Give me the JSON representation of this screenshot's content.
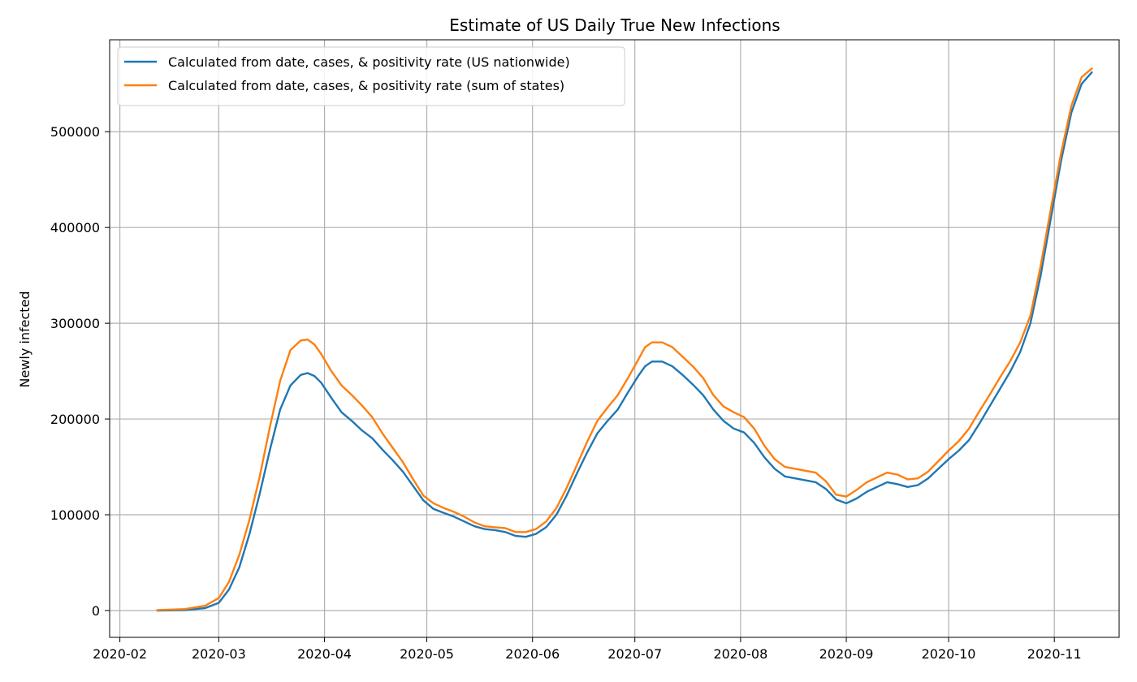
{
  "chart_data": {
    "type": "line",
    "title": "Estimate of US Daily True New Infections",
    "xlabel": "",
    "ylabel": "Newly infected",
    "x_ticks": [
      "2020-02",
      "2020-03",
      "2020-04",
      "2020-05",
      "2020-06",
      "2020-07",
      "2020-08",
      "2020-09",
      "2020-10",
      "2020-11"
    ],
    "y_ticks": [
      "0",
      "100000",
      "200000",
      "300000",
      "400000",
      "500000"
    ],
    "xlim": [
      "2020-01-29",
      "2020-11-20"
    ],
    "ylim": [
      -28000,
      596000
    ],
    "grid": true,
    "legend_position": "upper-left",
    "series": [
      {
        "name": "Calculated from date, cases, & positivity rate (US nationwide)",
        "color": "#1f77b4",
        "points": [
          [
            "2020-02-12",
            0
          ],
          [
            "2020-02-20",
            500
          ],
          [
            "2020-02-26",
            2500
          ],
          [
            "2020-03-01",
            8000
          ],
          [
            "2020-03-04",
            22000
          ],
          [
            "2020-03-07",
            45000
          ],
          [
            "2020-03-10",
            80000
          ],
          [
            "2020-03-13",
            122000
          ],
          [
            "2020-03-16",
            168000
          ],
          [
            "2020-03-19",
            210000
          ],
          [
            "2020-03-22",
            235000
          ],
          [
            "2020-03-25",
            246000
          ],
          [
            "2020-03-27",
            248000
          ],
          [
            "2020-03-29",
            245000
          ],
          [
            "2020-03-31",
            238000
          ],
          [
            "2020-04-03",
            222000
          ],
          [
            "2020-04-06",
            207000
          ],
          [
            "2020-04-09",
            198000
          ],
          [
            "2020-04-12",
            188000
          ],
          [
            "2020-04-15",
            180000
          ],
          [
            "2020-04-18",
            168000
          ],
          [
            "2020-04-21",
            157000
          ],
          [
            "2020-04-24",
            145000
          ],
          [
            "2020-04-27",
            130000
          ],
          [
            "2020-04-30",
            115000
          ],
          [
            "2020-05-03",
            106000
          ],
          [
            "2020-05-06",
            102000
          ],
          [
            "2020-05-09",
            98000
          ],
          [
            "2020-05-12",
            93000
          ],
          [
            "2020-05-15",
            88000
          ],
          [
            "2020-05-18",
            85000
          ],
          [
            "2020-05-21",
            84000
          ],
          [
            "2020-05-24",
            82000
          ],
          [
            "2020-05-27",
            78000
          ],
          [
            "2020-05-30",
            77000
          ],
          [
            "2020-06-02",
            80000
          ],
          [
            "2020-06-05",
            87000
          ],
          [
            "2020-06-08",
            100000
          ],
          [
            "2020-06-11",
            120000
          ],
          [
            "2020-06-14",
            143000
          ],
          [
            "2020-06-17",
            165000
          ],
          [
            "2020-06-20",
            185000
          ],
          [
            "2020-06-23",
            198000
          ],
          [
            "2020-06-26",
            210000
          ],
          [
            "2020-06-29",
            228000
          ],
          [
            "2020-07-02",
            245000
          ],
          [
            "2020-07-04",
            255000
          ],
          [
            "2020-07-06",
            260000
          ],
          [
            "2020-07-09",
            260000
          ],
          [
            "2020-07-12",
            255000
          ],
          [
            "2020-07-15",
            246000
          ],
          [
            "2020-07-18",
            236000
          ],
          [
            "2020-07-21",
            225000
          ],
          [
            "2020-07-24",
            210000
          ],
          [
            "2020-07-27",
            198000
          ],
          [
            "2020-07-30",
            190000
          ],
          [
            "2020-08-02",
            186000
          ],
          [
            "2020-08-05",
            175000
          ],
          [
            "2020-08-08",
            160000
          ],
          [
            "2020-08-11",
            148000
          ],
          [
            "2020-08-14",
            140000
          ],
          [
            "2020-08-17",
            138000
          ],
          [
            "2020-08-20",
            136000
          ],
          [
            "2020-08-23",
            134000
          ],
          [
            "2020-08-26",
            127000
          ],
          [
            "2020-08-29",
            116000
          ],
          [
            "2020-09-01",
            112000
          ],
          [
            "2020-09-04",
            117000
          ],
          [
            "2020-09-07",
            124000
          ],
          [
            "2020-09-10",
            129000
          ],
          [
            "2020-09-13",
            134000
          ],
          [
            "2020-09-16",
            132000
          ],
          [
            "2020-09-19",
            129000
          ],
          [
            "2020-09-22",
            131000
          ],
          [
            "2020-09-25",
            138000
          ],
          [
            "2020-09-28",
            148000
          ],
          [
            "2020-10-01",
            158000
          ],
          [
            "2020-10-04",
            167000
          ],
          [
            "2020-10-07",
            178000
          ],
          [
            "2020-10-10",
            195000
          ],
          [
            "2020-10-13",
            213000
          ],
          [
            "2020-10-16",
            231000
          ],
          [
            "2020-10-19",
            249000
          ],
          [
            "2020-10-22",
            270000
          ],
          [
            "2020-10-25",
            300000
          ],
          [
            "2020-10-28",
            350000
          ],
          [
            "2020-10-31",
            410000
          ],
          [
            "2020-11-03",
            470000
          ],
          [
            "2020-11-06",
            520000
          ],
          [
            "2020-11-09",
            550000
          ],
          [
            "2020-11-12",
            562000
          ]
        ]
      },
      {
        "name": "Calculated from date, cases, & positivity rate (sum of states)",
        "color": "#ff7f0e",
        "points": [
          [
            "2020-02-12",
            500
          ],
          [
            "2020-02-20",
            1500
          ],
          [
            "2020-02-26",
            5000
          ],
          [
            "2020-03-01",
            13000
          ],
          [
            "2020-03-04",
            30000
          ],
          [
            "2020-03-07",
            58000
          ],
          [
            "2020-03-10",
            95000
          ],
          [
            "2020-03-13",
            140000
          ],
          [
            "2020-03-16",
            192000
          ],
          [
            "2020-03-19",
            240000
          ],
          [
            "2020-03-22",
            272000
          ],
          [
            "2020-03-25",
            282000
          ],
          [
            "2020-03-27",
            283000
          ],
          [
            "2020-03-29",
            278000
          ],
          [
            "2020-03-31",
            268000
          ],
          [
            "2020-04-03",
            250000
          ],
          [
            "2020-04-06",
            235000
          ],
          [
            "2020-04-09",
            225000
          ],
          [
            "2020-04-12",
            214000
          ],
          [
            "2020-04-15",
            202000
          ],
          [
            "2020-04-18",
            185000
          ],
          [
            "2020-04-21",
            170000
          ],
          [
            "2020-04-24",
            155000
          ],
          [
            "2020-04-27",
            137000
          ],
          [
            "2020-04-30",
            120000
          ],
          [
            "2020-05-03",
            112000
          ],
          [
            "2020-05-06",
            107000
          ],
          [
            "2020-05-09",
            103000
          ],
          [
            "2020-05-12",
            98000
          ],
          [
            "2020-05-15",
            92000
          ],
          [
            "2020-05-18",
            88000
          ],
          [
            "2020-05-21",
            87000
          ],
          [
            "2020-05-24",
            86000
          ],
          [
            "2020-05-27",
            82000
          ],
          [
            "2020-05-30",
            82000
          ],
          [
            "2020-06-02",
            85000
          ],
          [
            "2020-06-05",
            93000
          ],
          [
            "2020-06-08",
            107000
          ],
          [
            "2020-06-11",
            128000
          ],
          [
            "2020-06-14",
            152000
          ],
          [
            "2020-06-17",
            176000
          ],
          [
            "2020-06-20",
            198000
          ],
          [
            "2020-06-23",
            212000
          ],
          [
            "2020-06-26",
            225000
          ],
          [
            "2020-06-29",
            243000
          ],
          [
            "2020-07-02",
            262000
          ],
          [
            "2020-07-04",
            275000
          ],
          [
            "2020-07-06",
            280000
          ],
          [
            "2020-07-09",
            280000
          ],
          [
            "2020-07-12",
            275000
          ],
          [
            "2020-07-15",
            265000
          ],
          [
            "2020-07-18",
            255000
          ],
          [
            "2020-07-21",
            243000
          ],
          [
            "2020-07-24",
            225000
          ],
          [
            "2020-07-27",
            213000
          ],
          [
            "2020-07-30",
            207000
          ],
          [
            "2020-08-02",
            202000
          ],
          [
            "2020-08-05",
            190000
          ],
          [
            "2020-08-08",
            172000
          ],
          [
            "2020-08-11",
            158000
          ],
          [
            "2020-08-14",
            150000
          ],
          [
            "2020-08-17",
            148000
          ],
          [
            "2020-08-20",
            146000
          ],
          [
            "2020-08-23",
            144000
          ],
          [
            "2020-08-26",
            135000
          ],
          [
            "2020-08-29",
            121000
          ],
          [
            "2020-09-01",
            119000
          ],
          [
            "2020-09-04",
            126000
          ],
          [
            "2020-09-07",
            134000
          ],
          [
            "2020-09-10",
            139000
          ],
          [
            "2020-09-13",
            144000
          ],
          [
            "2020-09-16",
            142000
          ],
          [
            "2020-09-19",
            137000
          ],
          [
            "2020-09-22",
            138000
          ],
          [
            "2020-09-25",
            145000
          ],
          [
            "2020-09-28",
            156000
          ],
          [
            "2020-10-01",
            167000
          ],
          [
            "2020-10-04",
            177000
          ],
          [
            "2020-10-07",
            190000
          ],
          [
            "2020-10-10",
            208000
          ],
          [
            "2020-10-13",
            225000
          ],
          [
            "2020-10-16",
            243000
          ],
          [
            "2020-10-19",
            260000
          ],
          [
            "2020-10-22",
            280000
          ],
          [
            "2020-10-25",
            308000
          ],
          [
            "2020-10-28",
            360000
          ],
          [
            "2020-10-31",
            420000
          ],
          [
            "2020-11-03",
            478000
          ],
          [
            "2020-11-06",
            527000
          ],
          [
            "2020-11-09",
            557000
          ],
          [
            "2020-11-12",
            566000
          ]
        ]
      }
    ]
  }
}
